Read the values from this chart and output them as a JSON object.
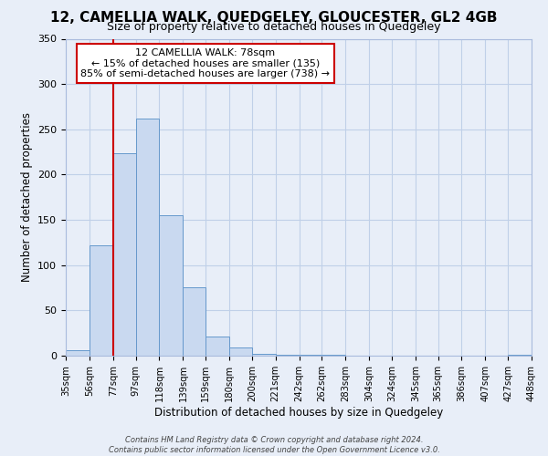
{
  "title": "12, CAMELLIA WALK, QUEDGELEY, GLOUCESTER, GL2 4GB",
  "subtitle": "Size of property relative to detached houses in Quedgeley",
  "xlabel": "Distribution of detached houses by size in Quedgeley",
  "ylabel": "Number of detached properties",
  "bin_edges": [
    35,
    56,
    77,
    97,
    118,
    139,
    159,
    180,
    200,
    221,
    242,
    262,
    283,
    304,
    324,
    345,
    365,
    386,
    407,
    427,
    448
  ],
  "bar_heights": [
    6,
    122,
    224,
    262,
    155,
    76,
    21,
    9,
    2,
    1,
    1,
    1,
    0,
    0,
    0,
    0,
    0,
    0,
    0,
    1
  ],
  "bar_color": "#c9d9f0",
  "bar_edge_color": "#6699cc",
  "property_line_x": 77,
  "property_line_color": "#cc0000",
  "ylim": [
    0,
    350
  ],
  "yticks": [
    0,
    50,
    100,
    150,
    200,
    250,
    300,
    350
  ],
  "annotation_box_text": "12 CAMELLIA WALK: 78sqm\n← 15% of detached houses are smaller (135)\n85% of semi-detached houses are larger (738) →",
  "annotation_box_color": "#ffffff",
  "annotation_box_edge_color": "#cc0000",
  "footer_line1": "Contains HM Land Registry data © Crown copyright and database right 2024.",
  "footer_line2": "Contains public sector information licensed under the Open Government Licence v3.0.",
  "tick_labels": [
    "35sqm",
    "56sqm",
    "77sqm",
    "97sqm",
    "118sqm",
    "139sqm",
    "159sqm",
    "180sqm",
    "200sqm",
    "221sqm",
    "242sqm",
    "262sqm",
    "283sqm",
    "304sqm",
    "324sqm",
    "345sqm",
    "365sqm",
    "386sqm",
    "407sqm",
    "427sqm",
    "448sqm"
  ],
  "grid_color": "#c0d0e8",
  "background_color": "#e8eef8",
  "title_fontsize": 11,
  "subtitle_fontsize": 9
}
